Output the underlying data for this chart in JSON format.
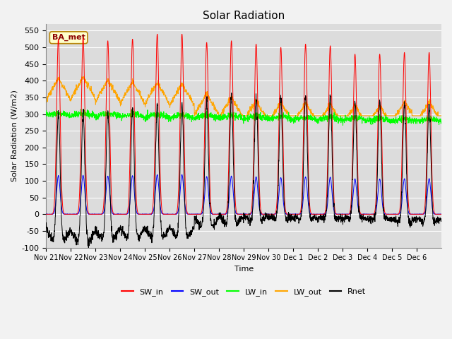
{
  "title": "Solar Radiation",
  "xlabel": "Time",
  "ylabel": "Solar Radiation (W/m2)",
  "ylim": [
    -100,
    570
  ],
  "yticks": [
    -100,
    -50,
    0,
    50,
    100,
    150,
    200,
    250,
    300,
    350,
    400,
    450,
    500,
    550
  ],
  "annotation": "BA_met",
  "colors": {
    "SW_in": "#FF0000",
    "SW_out": "#0000FF",
    "LW_in": "#00FF00",
    "LW_out": "#FFA500",
    "Rnet": "#000000"
  },
  "n_days": 16,
  "bg_color": "#DCDCDC",
  "grid_color": "#FFFFFF",
  "figsize": [
    6.4,
    4.8
  ],
  "dpi": 100,
  "tick_labels": [
    "Nov 21",
    "Nov 22",
    "Nov 23",
    "Nov 24",
    "Nov 25",
    "Nov 26",
    "Nov 27",
    "Nov 28",
    "Nov 29",
    "Nov 30",
    "Dec 1",
    "Dec 2",
    "Dec 3",
    "Dec 4",
    "Dec 5",
    "Dec 6"
  ],
  "sw_peaks": [
    525,
    530,
    520,
    525,
    540,
    540,
    515,
    520,
    510,
    500,
    510,
    505,
    480,
    480,
    485,
    485
  ],
  "lw_out_day": [
    390,
    395,
    385,
    380,
    378,
    375,
    345,
    335,
    325,
    320,
    318,
    315,
    312,
    310,
    322,
    322
  ],
  "lw_in_base": 295
}
